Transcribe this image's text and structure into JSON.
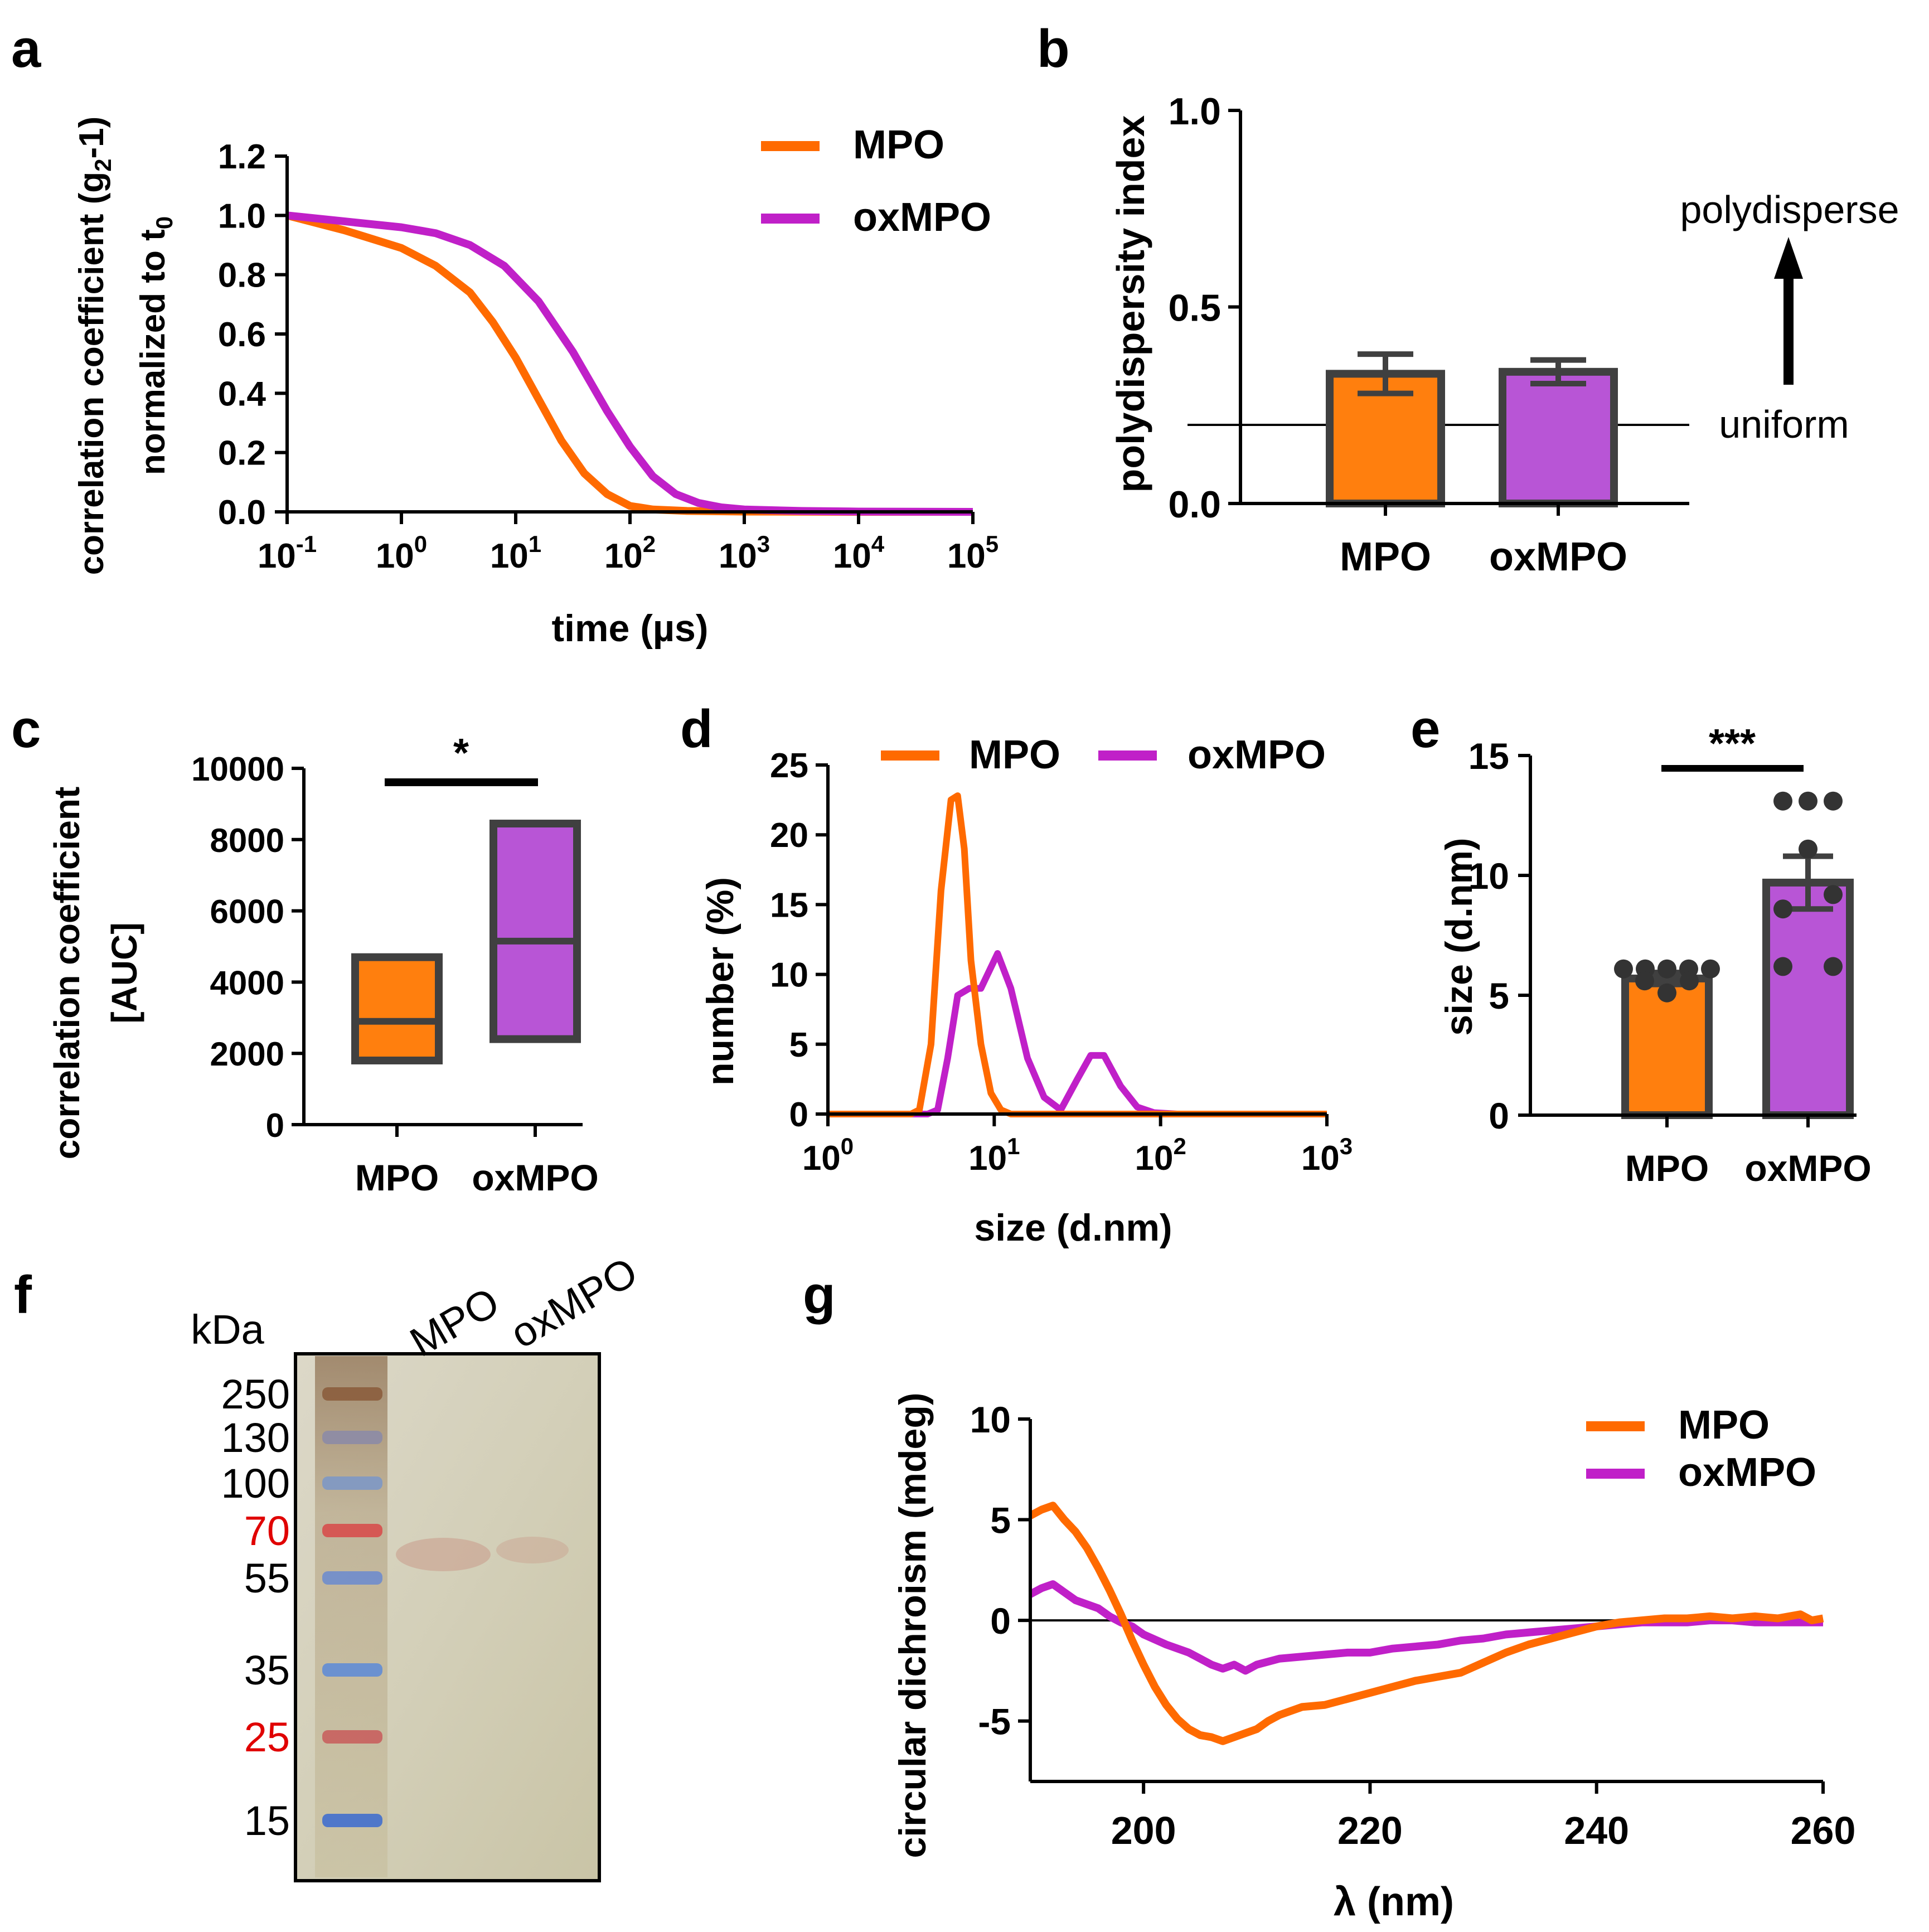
{
  "colors": {
    "mpo": "#ff6a00",
    "oxmpo": "#c020c8",
    "mpo_bar": "#ff7f0e",
    "oxmpo_bar": "#b855d6",
    "axis": "#000000",
    "bar_edge": "#404040",
    "red_label": "#e00000"
  },
  "panel_labels": {
    "a": "a",
    "b": "b",
    "c": "c",
    "d": "d",
    "e": "e",
    "f": "f",
    "g": "g"
  },
  "chart_data": [
    {
      "id": "a",
      "type": "line",
      "ylabel_line1": "correlation coefficient (g",
      "ylabel_sub1": "2",
      "ylabel_line1_end": "-1)",
      "ylabel_line2": "normalized to t",
      "ylabel_sub2": "0",
      "xlabel": "time (µs)",
      "xscale": "log",
      "xlim_log10": [
        -1,
        5
      ],
      "ylim": [
        0,
        1.2
      ],
      "xtick_base": "10",
      "xtick_exponents": [
        "-1",
        "0",
        "1",
        "2",
        "3",
        "4",
        "5"
      ],
      "yticks": [
        "0.0",
        "0.2",
        "0.4",
        "0.6",
        "0.8",
        "1.0",
        "1.2"
      ],
      "legend": [
        "MPO",
        "oxMPO"
      ],
      "series": [
        {
          "name": "MPO",
          "x_log10": [
            -1,
            -0.5,
            0,
            0.3,
            0.6,
            0.8,
            1,
            1.2,
            1.4,
            1.6,
            1.8,
            2,
            2.2,
            2.5,
            3,
            4,
            5
          ],
          "values": [
            1.0,
            0.95,
            0.89,
            0.83,
            0.74,
            0.64,
            0.52,
            0.38,
            0.24,
            0.13,
            0.06,
            0.02,
            0.008,
            0.003,
            0.001,
            0,
            0
          ]
        },
        {
          "name": "oxMPO",
          "x_log10": [
            -1,
            -0.5,
            0,
            0.3,
            0.6,
            0.9,
            1.2,
            1.5,
            1.8,
            2,
            2.2,
            2.4,
            2.6,
            2.8,
            3,
            3.5,
            4,
            5
          ],
          "values": [
            1.0,
            0.98,
            0.96,
            0.94,
            0.9,
            0.83,
            0.71,
            0.54,
            0.34,
            0.22,
            0.12,
            0.06,
            0.03,
            0.015,
            0.008,
            0.003,
            0.001,
            0
          ]
        }
      ]
    },
    {
      "id": "b",
      "type": "bar",
      "ylabel": "polydispersity index",
      "categories": [
        "MPO",
        "oxMPO"
      ],
      "values": [
        0.33,
        0.335
      ],
      "errors": [
        0.05,
        0.03
      ],
      "ylim": [
        0,
        1.0
      ],
      "yticks": [
        "0.0",
        "0.5",
        "1.0"
      ],
      "reference_line": 0.2,
      "annotation_top": "polydisperse",
      "annotation_bottom": "uniform"
    },
    {
      "id": "c",
      "type": "box",
      "ylabel_line1": "correlation coefficient",
      "ylabel_line2": "[AUC]",
      "categories": [
        "MPO",
        "oxMPO"
      ],
      "boxes": [
        {
          "low": 1800,
          "median": 2900,
          "high": 4700
        },
        {
          "low": 2400,
          "median": 5150,
          "high": 8450
        }
      ],
      "ylim": [
        0,
        10000
      ],
      "yticks": [
        "0",
        "2000",
        "4000",
        "6000",
        "8000",
        "10000"
      ],
      "significance": "*"
    },
    {
      "id": "d",
      "type": "line",
      "ylabel": "number (%)",
      "xlabel": "size (d.nm)",
      "xscale": "log",
      "xlim_log10": [
        0,
        3
      ],
      "ylim": [
        0,
        25
      ],
      "xtick_base": "10",
      "xtick_exponents": [
        "0",
        "1",
        "2",
        "3"
      ],
      "yticks": [
        "0",
        "5",
        "10",
        "15",
        "20",
        "25"
      ],
      "legend": [
        "MPO",
        "oxMPO"
      ],
      "series": [
        {
          "name": "MPO",
          "x_log10": [
            0,
            0.5,
            0.55,
            0.62,
            0.68,
            0.74,
            0.78,
            0.82,
            0.86,
            0.92,
            0.98,
            1.04,
            1.1,
            1.2,
            3
          ],
          "values": [
            0,
            0,
            0.3,
            5,
            16,
            22.5,
            22.8,
            19,
            11,
            5,
            1.5,
            0.3,
            0,
            0,
            0
          ]
        },
        {
          "name": "oxMPO",
          "x_log10": [
            0,
            0.6,
            0.66,
            0.72,
            0.78,
            0.85,
            0.92,
            0.96,
            1.02,
            1.1,
            1.2,
            1.3,
            1.4,
            1.5,
            1.58,
            1.66,
            1.76,
            1.86,
            1.96,
            2.1,
            3
          ],
          "values": [
            0,
            0,
            0.3,
            4,
            8.5,
            9,
            9,
            10,
            11.5,
            9,
            4,
            1.2,
            0.3,
            2.5,
            4.2,
            4.2,
            2,
            0.5,
            0.1,
            0,
            0
          ]
        }
      ]
    },
    {
      "id": "e",
      "type": "bar",
      "ylabel": "size (d.nm)",
      "categories": [
        "MPO",
        "oxMPO"
      ],
      "values": [
        5.7,
        9.7
      ],
      "errors": [
        0.25,
        1.1
      ],
      "ylim": [
        0,
        15
      ],
      "yticks": [
        "0",
        "5",
        "10",
        "15"
      ],
      "points": [
        [
          6.1,
          6.1,
          6.1,
          6.1,
          6.1,
          5.6,
          5.6,
          5.1
        ],
        [
          13.1,
          13.1,
          13.1,
          11.1,
          9.2,
          8.6,
          6.2,
          6.2
        ]
      ],
      "significance": "***"
    },
    {
      "id": "f",
      "type": "gel",
      "unit": "kDa",
      "lane_labels": [
        "MPO",
        "oxMPO"
      ],
      "ladder": [
        {
          "label": "250",
          "red": false
        },
        {
          "label": "130",
          "red": false
        },
        {
          "label": "100",
          "red": false
        },
        {
          "label": "70",
          "red": true
        },
        {
          "label": "55",
          "red": false
        },
        {
          "label": "35",
          "red": false
        },
        {
          "label": "25",
          "red": true
        },
        {
          "label": "15",
          "red": false
        }
      ]
    },
    {
      "id": "g",
      "type": "line",
      "ylabel": "circular dichroism (mdeg)",
      "xlabel": "λ (nm)",
      "xlim": [
        190,
        260
      ],
      "ylim": [
        -8,
        10
      ],
      "xticks": [
        "200",
        "220",
        "240",
        "260"
      ],
      "yticks": [
        "-5",
        "0",
        "5",
        "10"
      ],
      "legend": [
        "MPO",
        "oxMPO"
      ],
      "series": [
        {
          "name": "MPO",
          "x": [
            190,
            191,
            192,
            193,
            194,
            195,
            196,
            197,
            198,
            199,
            200,
            201,
            202,
            203,
            204,
            205,
            206,
            207,
            208,
            209,
            210,
            211,
            212,
            214,
            216,
            218,
            220,
            222,
            224,
            226,
            228,
            230,
            232,
            234,
            236,
            238,
            240,
            242,
            244,
            246,
            248,
            250,
            252,
            254,
            256,
            258,
            259,
            260
          ],
          "values": [
            5.2,
            5.5,
            5.7,
            5.0,
            4.4,
            3.6,
            2.6,
            1.5,
            0.3,
            -1.0,
            -2.2,
            -3.3,
            -4.2,
            -4.9,
            -5.4,
            -5.7,
            -5.8,
            -6.0,
            -5.8,
            -5.6,
            -5.4,
            -5.0,
            -4.7,
            -4.3,
            -4.2,
            -3.9,
            -3.6,
            -3.3,
            -3.0,
            -2.8,
            -2.6,
            -2.1,
            -1.6,
            -1.2,
            -0.9,
            -0.6,
            -0.3,
            -0.1,
            0.0,
            0.1,
            0.1,
            0.2,
            0.1,
            0.2,
            0.1,
            0.3,
            0.0,
            0.1
          ]
        },
        {
          "name": "oxMPO",
          "x": [
            190,
            191,
            192,
            193,
            194,
            195,
            196,
            197,
            198,
            199,
            200,
            202,
            204,
            206,
            207,
            208,
            209,
            210,
            212,
            214,
            216,
            218,
            220,
            222,
            224,
            226,
            228,
            230,
            232,
            234,
            236,
            238,
            240,
            242,
            244,
            246,
            248,
            250,
            252,
            254,
            256,
            258,
            260
          ],
          "values": [
            1.3,
            1.6,
            1.8,
            1.4,
            1.0,
            0.8,
            0.6,
            0.2,
            -0.1,
            -0.3,
            -0.7,
            -1.2,
            -1.6,
            -2.2,
            -2.4,
            -2.2,
            -2.5,
            -2.2,
            -1.9,
            -1.8,
            -1.7,
            -1.6,
            -1.6,
            -1.4,
            -1.3,
            -1.2,
            -1.0,
            -0.9,
            -0.7,
            -0.6,
            -0.5,
            -0.4,
            -0.3,
            -0.2,
            -0.1,
            -0.1,
            -0.1,
            0.0,
            0.0,
            -0.1,
            -0.1,
            -0.1,
            -0.1
          ]
        }
      ]
    }
  ]
}
